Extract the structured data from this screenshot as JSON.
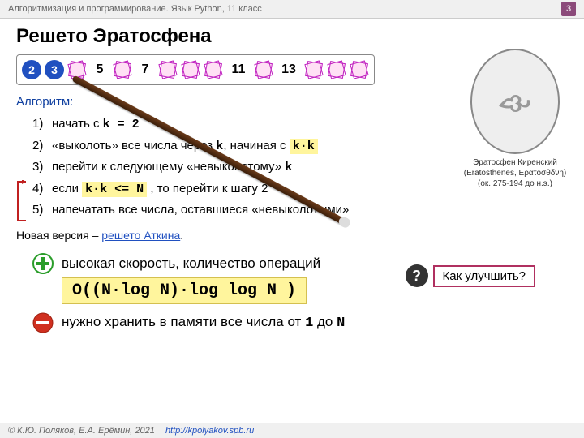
{
  "header": {
    "breadcrumb": "Алгоритмизация и программирование. Язык Python, 11 класс",
    "page": "3"
  },
  "title": "Решето Эратосфена",
  "sieve": {
    "cells": [
      {
        "t": "circle",
        "v": "2"
      },
      {
        "t": "circle",
        "v": "3"
      },
      {
        "t": "cross"
      },
      {
        "t": "plain",
        "v": "5"
      },
      {
        "t": "cross"
      },
      {
        "t": "plain",
        "v": "7"
      },
      {
        "t": "cross"
      },
      {
        "t": "cross"
      },
      {
        "t": "cross"
      },
      {
        "t": "wide",
        "v": "11"
      },
      {
        "t": "cross"
      },
      {
        "t": "wide",
        "v": "13"
      },
      {
        "t": "cross"
      },
      {
        "t": "cross"
      },
      {
        "t": "cross"
      }
    ],
    "colors": {
      "circle_bg": "#2050c0",
      "circle_fg": "#ffffff",
      "cross": "#c020c0",
      "cross_fill": "#ffe0f5"
    }
  },
  "portrait": {
    "name": "Эратосфен Киренский",
    "latin": "(Eratosthenes, Ερατοσθδνη)",
    "dates": "(ок. 275-194 до н.э.)"
  },
  "algorithm": {
    "label": "Алгоритм:",
    "steps": {
      "s1_pre": "начать с ",
      "s1_code": "k = 2",
      "s2_pre": "«выколоть» все числа через ",
      "s2_code": "k",
      "s2_mid": ", начиная с ",
      "s2_hl": "k·k",
      "s3": "перейти к следующему «невыколотому» ",
      "s3_code": "k",
      "s4_pre": "если ",
      "s4_hl": "k·k <= N",
      "s4_post": " , то перейти к шагу 2",
      "s5": "напечатать все числа, оставшиеся «невыколотыми»"
    }
  },
  "new_version": {
    "pre": "Новая версия – ",
    "link": "решето Аткина",
    "post": "."
  },
  "improve": {
    "q": "?",
    "label": "Как улучшить?"
  },
  "pros": "высокая скорость, количество операций",
  "complexity": "O((N·log N)·log log N )",
  "cons_pre": "нужно хранить в памяти все числа от ",
  "cons_one": "1",
  "cons_mid": " до ",
  "cons_n": "N",
  "footer": {
    "copyright": "© К.Ю. Поляков, Е.А. Ерёмин, 2021",
    "url": "http://kpolyakov.spb.ru"
  },
  "style": {
    "highlight_bg": "#fff59d",
    "link_color": "#2050c0",
    "loop_color": "#c02020"
  }
}
